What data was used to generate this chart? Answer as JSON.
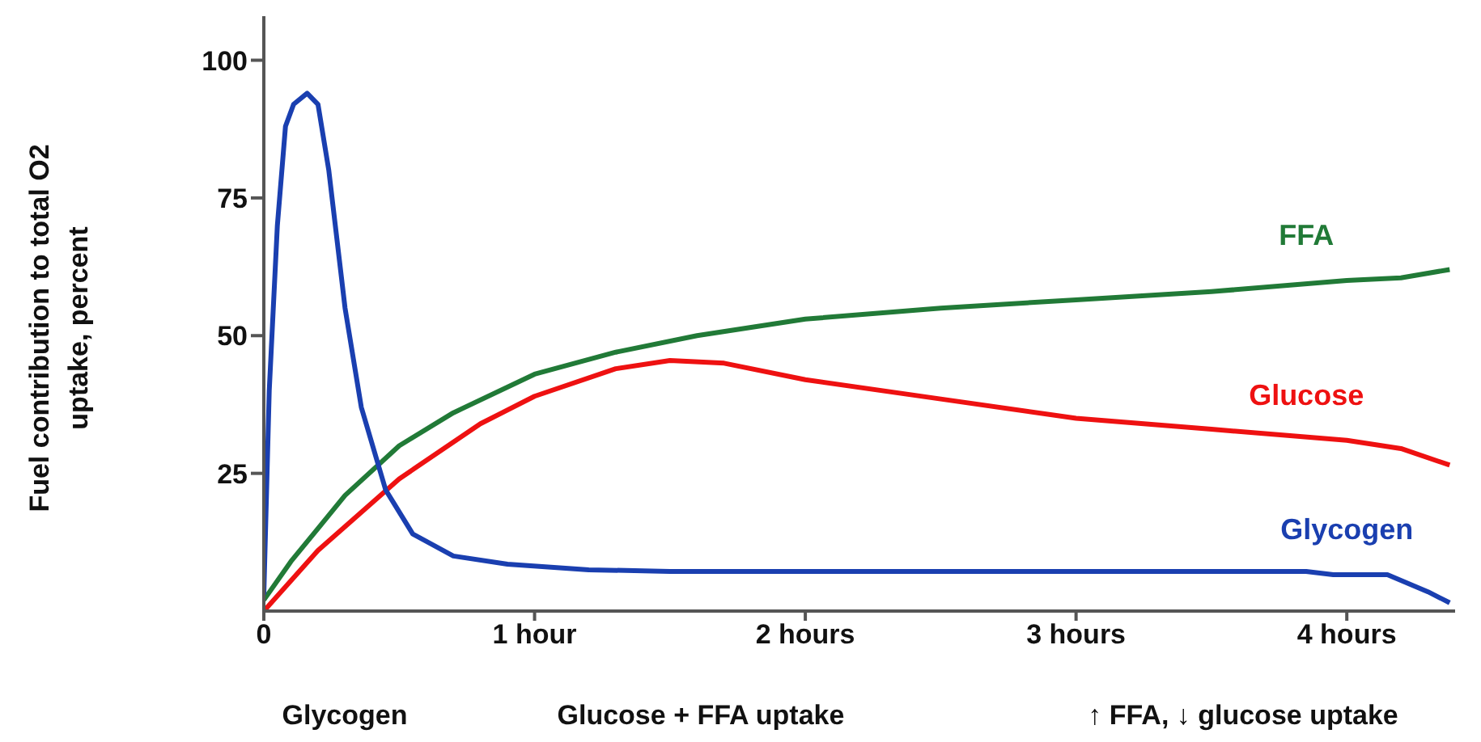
{
  "chart_data": {
    "type": "line",
    "ylabel": "Fuel contribution to total O2 uptake, percent",
    "xlim": [
      0,
      4.4
    ],
    "xticks": [
      0,
      {
        "value": 1,
        "label": "1 hour"
      },
      {
        "value": 2,
        "label": "2 hours"
      },
      {
        "value": 3,
        "label": "3 hours"
      },
      {
        "value": 4,
        "label": "4 hours"
      }
    ],
    "ylim": [
      0,
      108
    ],
    "yticks": [
      25,
      50,
      75,
      100
    ],
    "marker": "none",
    "series": [
      {
        "name": "FFA",
        "color": "#217a37",
        "x": [
          0,
          0.1,
          0.2,
          0.3,
          0.5,
          0.7,
          1,
          1.3,
          1.6,
          2,
          2.5,
          3,
          3.5,
          4,
          4.2,
          4.38
        ],
        "values": [
          2,
          9,
          15,
          21,
          30,
          36,
          43,
          47,
          50,
          53,
          55,
          56.5,
          58,
          60,
          60.5,
          62
        ]
      },
      {
        "name": "Glucose",
        "color": "#ee1111",
        "x": [
          0,
          0.2,
          0.5,
          0.8,
          1,
          1.3,
          1.5,
          1.7,
          2,
          2.5,
          3,
          3.5,
          4,
          4.2,
          4.38
        ],
        "values": [
          0,
          11,
          24,
          34,
          39,
          44,
          45.5,
          45,
          42,
          38.5,
          35,
          33,
          31,
          29.5,
          26.5
        ]
      },
      {
        "name": "Glycogen",
        "color": "#1a3fb0",
        "x": [
          0,
          0.02,
          0.05,
          0.08,
          0.11,
          0.16,
          0.2,
          0.24,
          0.3,
          0.36,
          0.45,
          0.55,
          0.7,
          0.9,
          1.2,
          1.5,
          2,
          3,
          3.85,
          3.95,
          4.15,
          4.3,
          4.38
        ],
        "values": [
          3,
          40,
          70,
          88,
          92,
          94,
          92,
          80,
          55,
          37,
          22,
          14,
          10,
          8.5,
          7.5,
          7.2,
          7.2,
          7.2,
          7.2,
          6.6,
          6.6,
          3.5,
          1.5
        ]
      }
    ],
    "annotations": [
      "Glycogen",
      "Glucose + FFA uptake",
      "↑ FFA, ↓ glucose uptake"
    ]
  }
}
